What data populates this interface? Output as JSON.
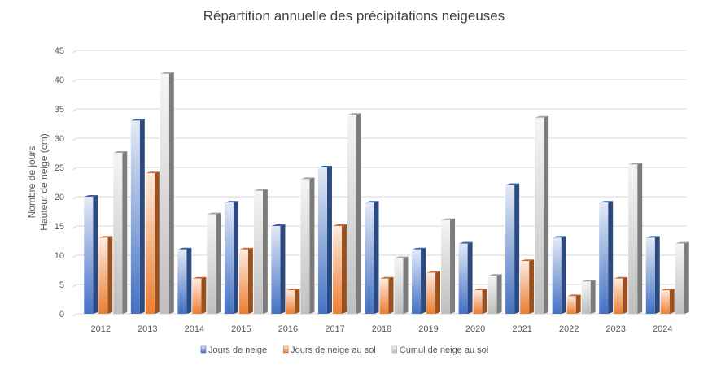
{
  "chart_data": {
    "type": "bar",
    "title": "Répartition annuelle des précipitations neigeuses",
    "ylabel_lines": [
      "Nombre de jours",
      "Hauteur de neige (cm)"
    ],
    "xlabel": "",
    "ylim": [
      0,
      45
    ],
    "yticks": [
      0,
      5,
      10,
      15,
      20,
      25,
      30,
      35,
      40,
      45
    ],
    "grid": true,
    "legend_position": "bottom",
    "categories": [
      "2012",
      "2013",
      "2014",
      "2015",
      "2016",
      "2017",
      "2018",
      "2019",
      "2020",
      "2021",
      "2022",
      "2023",
      "2024"
    ],
    "series": [
      {
        "name": "Jours de neige",
        "color": "#4472c4",
        "values": [
          20,
          33,
          11,
          19,
          15,
          25,
          19,
          11,
          12,
          22,
          13,
          19,
          13
        ]
      },
      {
        "name": "Jours de neige au sol",
        "color": "#ed7d31",
        "values": [
          13,
          24,
          6,
          11,
          4,
          15,
          6,
          7,
          4,
          9,
          3,
          6,
          4
        ]
      },
      {
        "name": "Cumul de neige au sol",
        "color": "#bfbfbf",
        "values": [
          27.5,
          41,
          17,
          21,
          23,
          34,
          9.5,
          16,
          6.5,
          33.5,
          5.5,
          25.5,
          12
        ]
      }
    ]
  }
}
